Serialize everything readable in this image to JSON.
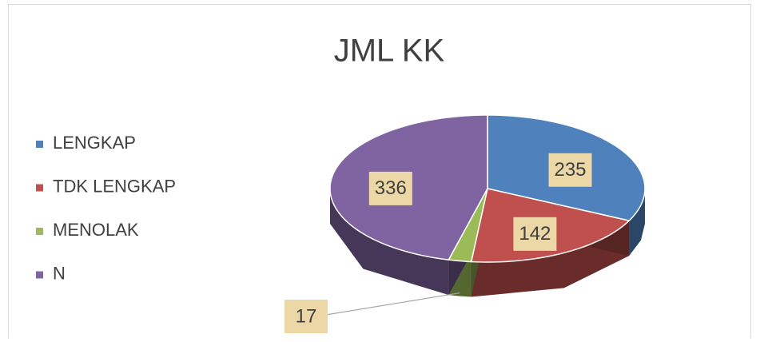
{
  "chart_data": {
    "type": "pie",
    "title": "JML KK",
    "categories": [
      "LENGKAP",
      "TDK LENGKAP",
      "MENOLAK",
      "N"
    ],
    "values": [
      235,
      142,
      17,
      336
    ],
    "colors": [
      "#4f81bd",
      "#c0504d",
      "#9bbb59",
      "#8064a2"
    ],
    "legend": "left"
  }
}
